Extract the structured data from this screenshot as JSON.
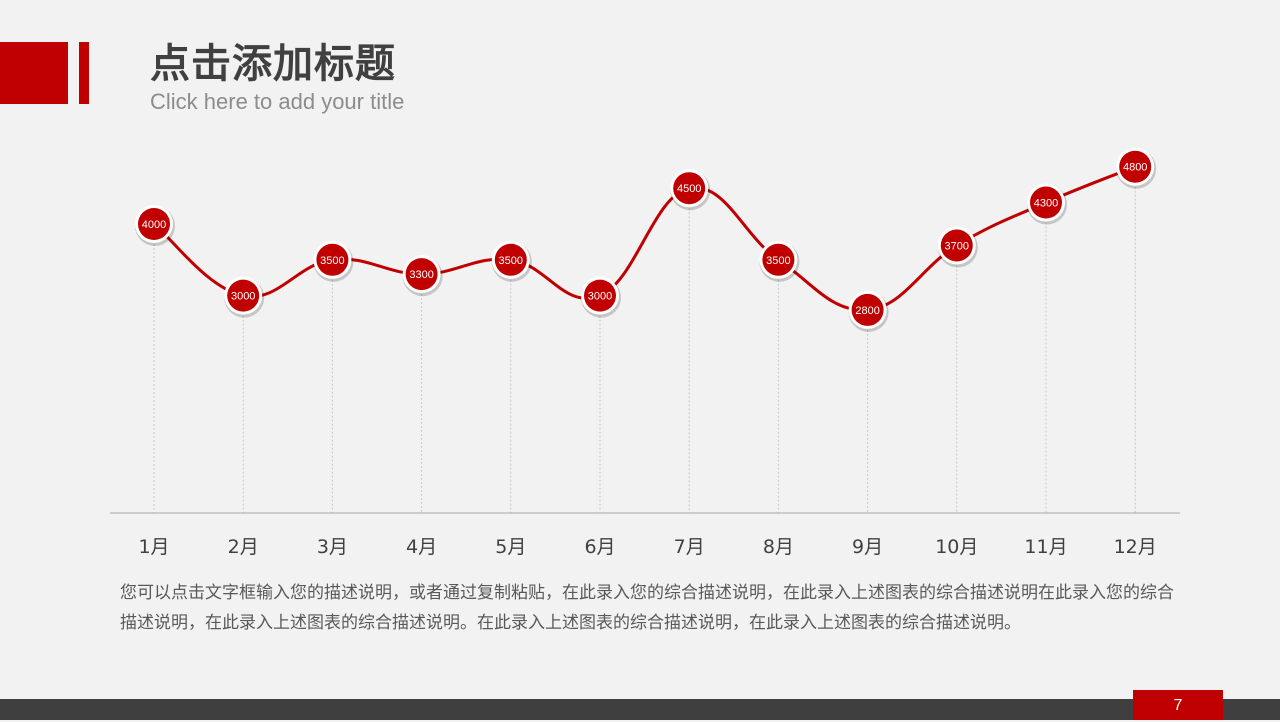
{
  "header": {
    "title": "点击添加标题",
    "subtitle": "Click here to add your title"
  },
  "colors": {
    "accent": "#c00000",
    "text_dark": "#404040",
    "footer": "#3f3f3f",
    "background": "#f2f2f2"
  },
  "chart_data": {
    "type": "line",
    "categories": [
      "1月",
      "2月",
      "3月",
      "4月",
      "5月",
      "6月",
      "7月",
      "8月",
      "9月",
      "10月",
      "11月",
      "12月"
    ],
    "series": [
      {
        "values": [
          4000,
          3000,
          3500,
          3300,
          3500,
          3000,
          4500,
          3500,
          2800,
          3700,
          4300,
          4800
        ]
      }
    ],
    "data_labels": true,
    "smooth": true,
    "grid": false,
    "legend": "none"
  },
  "description": "您可以点击文字框输入您的描述说明，或者通过复制粘贴，在此录入您的综合描述说明，在此录入上述图表的综合描述说明在此录入您的综合描述说明，在此录入上述图表的综合描述说明。在此录入上述图表的综合描述说明，在此录入上述图表的综合描述说明。",
  "footer": {
    "page_number": "7"
  }
}
